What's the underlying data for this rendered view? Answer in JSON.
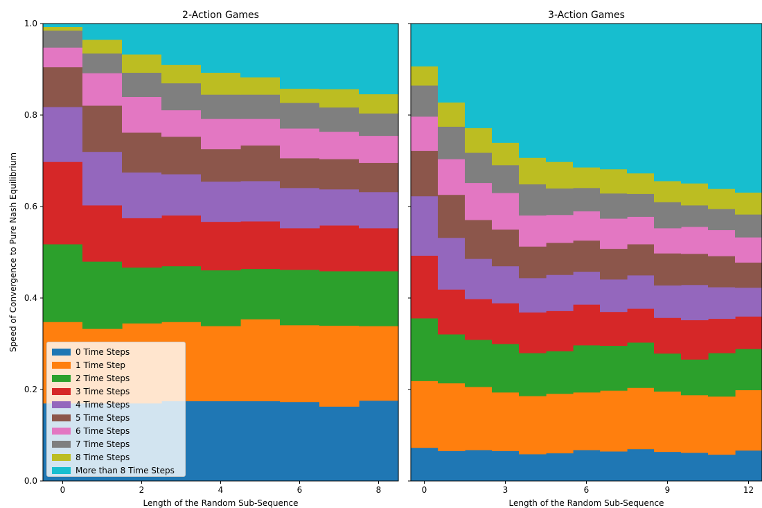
{
  "y_axis_label": "Speed of Convergence to Pure Nash Equilibrium",
  "legend_labels": [
    "0 Time Steps",
    "1 Time Step",
    "2 Time Steps",
    "3 Time Steps",
    "4 Time Steps",
    "5 Time Steps",
    "6 Time Steps",
    "7 Time Steps",
    "8 Time Steps",
    "More than 8 Time Steps"
  ],
  "colors": [
    "#1f77b4",
    "#ff7f0e",
    "#2ca02c",
    "#d62728",
    "#9467bd",
    "#8c564b",
    "#e377c2",
    "#7f7f7f",
    "#bcbd22",
    "#17becf"
  ],
  "y_ticks": [
    "0.0",
    "0.2",
    "0.4",
    "0.6",
    "0.8",
    "1.0"
  ],
  "chart_data": [
    {
      "type": "area",
      "title": "2-Action Games",
      "xlabel": "Length of the Random Sub-Sequence",
      "ylabel": "Speed of Convergence to Pure Nash Equilibrium",
      "x": [
        0,
        1,
        2,
        3,
        4,
        5,
        6,
        7,
        8
      ],
      "xlim": [
        -0.5,
        8.5
      ],
      "ylim": [
        0,
        1
      ],
      "x_ticks": [
        "0",
        "2",
        "4",
        "6",
        "8"
      ],
      "x_tick_values": [
        0,
        2,
        4,
        6,
        8
      ],
      "step": "mid",
      "stacked": true,
      "grid": false,
      "legend_position": "lower left",
      "series": [
        {
          "name": "0 Time Steps",
          "values": [
            0.17,
            0.17,
            0.17,
            0.175,
            0.175,
            0.175,
            0.173,
            0.163,
            0.176
          ]
        },
        {
          "name": "1 Time Step",
          "values": [
            0.178,
            0.163,
            0.175,
            0.173,
            0.164,
            0.179,
            0.168,
            0.177,
            0.163
          ]
        },
        {
          "name": "2 Time Steps",
          "values": [
            0.17,
            0.147,
            0.122,
            0.122,
            0.122,
            0.11,
            0.121,
            0.119,
            0.12
          ]
        },
        {
          "name": "3 Time Steps",
          "values": [
            0.18,
            0.123,
            0.108,
            0.111,
            0.106,
            0.104,
            0.091,
            0.1,
            0.094
          ]
        },
        {
          "name": "4 Time Steps",
          "values": [
            0.12,
            0.117,
            0.1,
            0.09,
            0.088,
            0.088,
            0.088,
            0.079,
            0.079
          ]
        },
        {
          "name": "5 Time Steps",
          "values": [
            0.087,
            0.101,
            0.087,
            0.082,
            0.071,
            0.078,
            0.065,
            0.066,
            0.064
          ]
        },
        {
          "name": "6 Time Steps",
          "values": [
            0.043,
            0.071,
            0.078,
            0.058,
            0.066,
            0.058,
            0.065,
            0.06,
            0.059
          ]
        },
        {
          "name": "7 Time Steps",
          "values": [
            0.037,
            0.043,
            0.053,
            0.059,
            0.053,
            0.053,
            0.056,
            0.053,
            0.049
          ]
        },
        {
          "name": "8 Time Steps",
          "values": [
            0.008,
            0.03,
            0.04,
            0.04,
            0.048,
            0.038,
            0.031,
            0.04,
            0.042
          ]
        },
        {
          "name": "More than 8 Time Steps",
          "values": [
            0.007,
            0.035,
            0.067,
            0.09,
            0.107,
            0.117,
            0.142,
            0.143,
            0.154
          ]
        }
      ]
    },
    {
      "type": "area",
      "title": "3-Action Games",
      "xlabel": "Length of the Random Sub-Sequence",
      "ylabel": "",
      "x": [
        0,
        1,
        2,
        3,
        4,
        5,
        6,
        7,
        8,
        9,
        10,
        11,
        12
      ],
      "xlim": [
        -0.5,
        12.5
      ],
      "ylim": [
        0,
        1
      ],
      "x_ticks": [
        "0",
        "3",
        "6",
        "9",
        "12"
      ],
      "x_tick_values": [
        0,
        3,
        6,
        9,
        12
      ],
      "step": "mid",
      "stacked": true,
      "grid": false,
      "series": [
        {
          "name": "0 Time Steps",
          "values": [
            0.073,
            0.066,
            0.068,
            0.066,
            0.059,
            0.061,
            0.068,
            0.065,
            0.07,
            0.064,
            0.062,
            0.058,
            0.067
          ]
        },
        {
          "name": "1 Time Step",
          "values": [
            0.146,
            0.148,
            0.138,
            0.128,
            0.127,
            0.13,
            0.126,
            0.133,
            0.134,
            0.132,
            0.126,
            0.127,
            0.132
          ]
        },
        {
          "name": "2 Time Steps",
          "values": [
            0.137,
            0.107,
            0.103,
            0.106,
            0.094,
            0.093,
            0.103,
            0.098,
            0.099,
            0.083,
            0.078,
            0.095,
            0.09
          ]
        },
        {
          "name": "3 Time Steps",
          "values": [
            0.137,
            0.098,
            0.089,
            0.089,
            0.089,
            0.088,
            0.089,
            0.074,
            0.074,
            0.078,
            0.086,
            0.075,
            0.071
          ]
        },
        {
          "name": "4 Time Steps",
          "values": [
            0.13,
            0.113,
            0.088,
            0.081,
            0.075,
            0.079,
            0.072,
            0.071,
            0.073,
            0.071,
            0.077,
            0.069,
            0.063
          ]
        },
        {
          "name": "5 Time Steps",
          "values": [
            0.099,
            0.094,
            0.085,
            0.08,
            0.069,
            0.07,
            0.068,
            0.067,
            0.068,
            0.07,
            0.068,
            0.068,
            0.055
          ]
        },
        {
          "name": "6 Time Steps",
          "values": [
            0.075,
            0.078,
            0.081,
            0.08,
            0.068,
            0.061,
            0.064,
            0.066,
            0.06,
            0.055,
            0.059,
            0.057,
            0.055
          ]
        },
        {
          "name": "7 Time Steps",
          "values": [
            0.068,
            0.071,
            0.066,
            0.061,
            0.068,
            0.058,
            0.051,
            0.055,
            0.05,
            0.057,
            0.047,
            0.046,
            0.05
          ]
        },
        {
          "name": "8 Time Steps",
          "values": [
            0.042,
            0.053,
            0.054,
            0.049,
            0.058,
            0.058,
            0.045,
            0.053,
            0.045,
            0.046,
            0.048,
            0.044,
            0.048
          ]
        },
        {
          "name": "More than 8 Time Steps",
          "values": [
            0.093,
            0.172,
            0.228,
            0.26,
            0.293,
            0.302,
            0.314,
            0.318,
            0.327,
            0.344,
            0.349,
            0.361,
            0.369
          ]
        }
      ]
    }
  ]
}
